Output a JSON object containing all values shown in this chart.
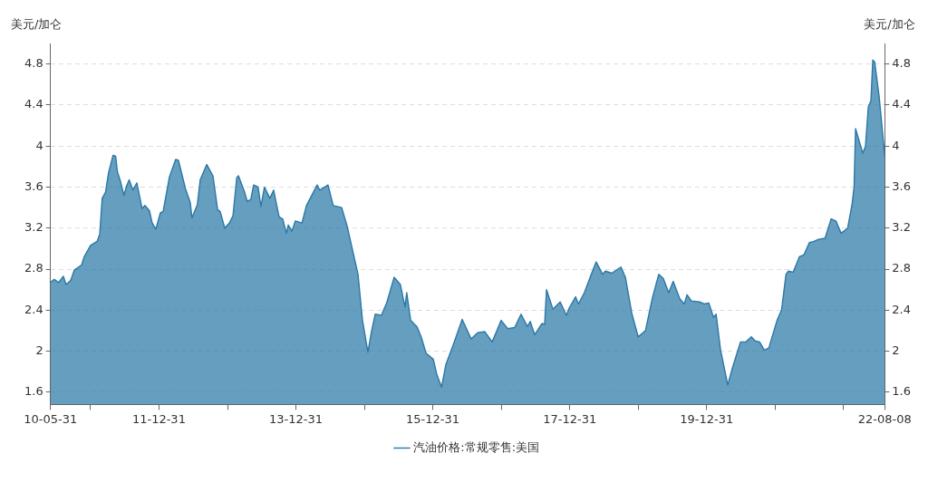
{
  "chart_data": {
    "type": "area",
    "ylabel": "美元/加仑",
    "y2label": "美元/加仑",
    "x": [
      "2010-05-31",
      "2010-06-20",
      "2010-07-14",
      "2010-08-08",
      "2010-08-22",
      "2010-09-16",
      "2010-10-05",
      "2010-11-13",
      "2010-11-27",
      "2010-12-31",
      "2011-02-04",
      "2011-02-18",
      "2011-03-03",
      "2011-03-21",
      "2011-04-06",
      "2011-04-30",
      "2011-05-14",
      "2011-05-23",
      "2011-06-08",
      "2011-06-27",
      "2011-07-11",
      "2011-07-25",
      "2011-08-14",
      "2011-09-04",
      "2011-10-02",
      "2011-10-17",
      "2011-11-10",
      "2011-11-25",
      "2011-12-14",
      "2012-01-08",
      "2012-01-22",
      "2012-02-25",
      "2012-03-29",
      "2012-04-13",
      "2012-05-21",
      "2012-06-15",
      "2012-06-24",
      "2012-07-23",
      "2012-08-07",
      "2012-09-11",
      "2012-10-14",
      "2012-11-08",
      "2012-11-22",
      "2012-12-16",
      "2013-01-10",
      "2013-01-29",
      "2013-02-18",
      "2013-02-27",
      "2013-04-01",
      "2013-04-15",
      "2013-05-04",
      "2013-05-19",
      "2013-06-12",
      "2013-06-27",
      "2013-07-16",
      "2013-08-14",
      "2013-09-03",
      "2013-10-02",
      "2013-10-21",
      "2013-11-10",
      "2013-11-20",
      "2013-12-09",
      "2013-12-28",
      "2014-02-01",
      "2014-02-25",
      "2014-04-23",
      "2014-05-07",
      "2014-06-20",
      "2014-07-18",
      "2014-09-01",
      "2014-09-30",
      "2014-11-27",
      "2014-12-21",
      "2015-01-19",
      "2015-02-08",
      "2015-02-27",
      "2015-04-01",
      "2015-04-29",
      "2015-06-08",
      "2015-07-11",
      "2015-08-05",
      "2015-08-14",
      "2015-09-04",
      "2015-10-07",
      "2015-11-01",
      "2015-11-25",
      "2016-01-03",
      "2016-01-22",
      "2016-02-16",
      "2016-03-10",
      "2016-04-18",
      "2016-06-05",
      "2016-07-23",
      "2016-08-26",
      "2016-10-04",
      "2016-11-12",
      "2016-12-30",
      "2017-02-03",
      "2017-03-12",
      "2017-04-15",
      "2017-05-19",
      "2017-06-03",
      "2017-06-27",
      "2017-08-05",
      "2017-08-19",
      "2017-08-29",
      "2017-10-02",
      "2017-11-10",
      "2017-12-13",
      "2017-12-28",
      "2018-01-31",
      "2018-02-15",
      "2018-03-19",
      "2018-04-27",
      "2018-05-21",
      "2018-06-24",
      "2018-07-09",
      "2018-08-12",
      "2018-09-30",
      "2018-10-24",
      "2018-11-27",
      "2018-12-31",
      "2019-02-08",
      "2019-03-17",
      "2019-04-20",
      "2019-05-14",
      "2019-06-12",
      "2019-07-06",
      "2019-08-10",
      "2019-09-03",
      "2019-09-18",
      "2019-10-11",
      "2019-11-24",
      "2019-12-18",
      "2020-01-12",
      "2020-02-06",
      "2020-02-20",
      "2020-03-14",
      "2020-04-22",
      "2020-05-16",
      "2020-06-29",
      "2020-07-28",
      "2020-08-26",
      "2020-09-15",
      "2020-10-09",
      "2020-11-03",
      "2020-11-27",
      "2021-01-10",
      "2021-02-03",
      "2021-02-27",
      "2021-03-12",
      "2021-04-06",
      "2021-05-09",
      "2021-06-03",
      "2021-07-02",
      "2021-07-26",
      "2021-08-19",
      "2021-09-23",
      "2021-10-26",
      "2021-11-20",
      "2021-12-18",
      "2022-01-22",
      "2022-02-15",
      "2022-02-25",
      "2022-03-05",
      "2022-03-24",
      "2022-04-13",
      "2022-04-27",
      "2022-05-12",
      "2022-05-26",
      "2022-06-05",
      "2022-06-15",
      "2022-07-09",
      "2022-08-08"
    ],
    "series": [
      {
        "name": "汽油价格:常规零售:美国",
        "color": "#2a78a6",
        "values": [
          2.67,
          2.7,
          2.67,
          2.73,
          2.65,
          2.69,
          2.79,
          2.84,
          2.92,
          3.03,
          3.07,
          3.14,
          3.49,
          3.55,
          3.74,
          3.91,
          3.9,
          3.75,
          3.66,
          3.52,
          3.61,
          3.67,
          3.57,
          3.64,
          3.39,
          3.42,
          3.37,
          3.25,
          3.19,
          3.35,
          3.36,
          3.7,
          3.87,
          3.86,
          3.58,
          3.45,
          3.3,
          3.43,
          3.67,
          3.82,
          3.71,
          3.38,
          3.36,
          3.2,
          3.25,
          3.32,
          3.69,
          3.71,
          3.55,
          3.46,
          3.48,
          3.62,
          3.6,
          3.41,
          3.6,
          3.49,
          3.57,
          3.31,
          3.29,
          3.15,
          3.23,
          3.17,
          3.27,
          3.25,
          3.42,
          3.62,
          3.57,
          3.62,
          3.42,
          3.4,
          3.22,
          2.75,
          2.3,
          1.99,
          2.2,
          2.36,
          2.35,
          2.47,
          2.72,
          2.65,
          2.43,
          2.57,
          2.3,
          2.24,
          2.13,
          1.98,
          1.92,
          1.77,
          1.65,
          1.87,
          2.06,
          2.31,
          2.12,
          2.18,
          2.19,
          2.09,
          2.3,
          2.22,
          2.23,
          2.36,
          2.24,
          2.29,
          2.16,
          2.27,
          2.26,
          2.6,
          2.41,
          2.48,
          2.35,
          2.42,
          2.53,
          2.46,
          2.57,
          2.76,
          2.87,
          2.75,
          2.78,
          2.76,
          2.82,
          2.72,
          2.37,
          2.14,
          2.2,
          2.52,
          2.75,
          2.71,
          2.57,
          2.68,
          2.51,
          2.46,
          2.55,
          2.49,
          2.48,
          2.46,
          2.47,
          2.33,
          2.36,
          2.02,
          1.67,
          1.83,
          2.09,
          2.09,
          2.14,
          2.1,
          2.09,
          2.01,
          2.03,
          2.3,
          2.4,
          2.75,
          2.78,
          2.77,
          2.92,
          2.94,
          3.06,
          3.07,
          3.09,
          3.1,
          3.29,
          3.27,
          3.15,
          3.2,
          3.44,
          3.6,
          4.17,
          4.05,
          3.93,
          4.0,
          4.38,
          4.44,
          4.84,
          4.82,
          4.48,
          3.9
        ]
      }
    ],
    "xlim": [
      "2010-05-31",
      "2022-08-08"
    ],
    "xticks": [
      {
        "value": "2010-05-31",
        "label": "10-05-31"
      },
      {
        "value": "2010-12-31",
        "label": null
      },
      {
        "value": "2011-12-31",
        "label": "11-12-31"
      },
      {
        "value": "2012-12-31",
        "label": null
      },
      {
        "value": "2013-12-31",
        "label": "13-12-31"
      },
      {
        "value": "2014-12-31",
        "label": null
      },
      {
        "value": "2015-12-31",
        "label": "15-12-31"
      },
      {
        "value": "2016-12-31",
        "label": null
      },
      {
        "value": "2017-12-31",
        "label": "17-12-31"
      },
      {
        "value": "2018-12-31",
        "label": null
      },
      {
        "value": "2019-12-31",
        "label": "19-12-31"
      },
      {
        "value": "2020-12-31",
        "label": null
      },
      {
        "value": "2021-12-31",
        "label": null
      },
      {
        "value": "2022-08-08",
        "label": "22-08-08"
      }
    ],
    "ylim": [
      1.48,
      5
    ],
    "yticks": [
      1.6,
      2,
      2.4,
      2.8,
      3.2,
      3.6,
      4,
      4.4,
      4.8
    ],
    "y2lim": [
      1.48,
      5
    ],
    "y2ticks": [
      1.6,
      2,
      2.4,
      2.8,
      3.2,
      3.6,
      4,
      4.4,
      4.8
    ],
    "grid": "y",
    "legend": "bottom",
    "marker": "none",
    "line_style": "solid"
  }
}
